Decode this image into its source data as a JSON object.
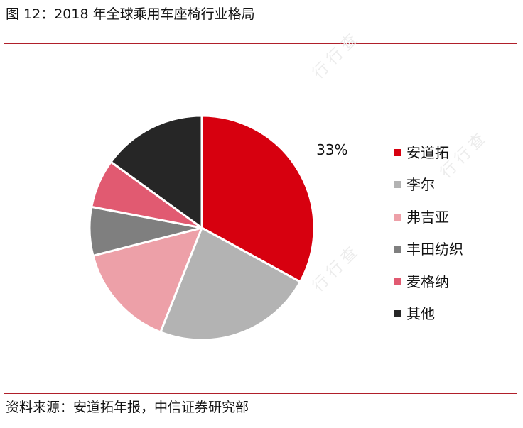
{
  "header": {
    "title": "图 12：2018 年全球乘用车座椅行业格局"
  },
  "footer": {
    "source": "资料来源：安道拓年报，中信证券研究部"
  },
  "watermark": {
    "text": "行行查"
  },
  "chart_data": {
    "type": "pie",
    "title": "",
    "slices": [
      {
        "label": "安道拓",
        "value": 33,
        "color": "#d7000f",
        "data_label": "33%"
      },
      {
        "label": "李尔",
        "value": 23,
        "color": "#b3b3b3",
        "data_label": ""
      },
      {
        "label": "弗吉亚",
        "value": 15,
        "color": "#eda0a8",
        "data_label": ""
      },
      {
        "label": "丰田纺织",
        "value": 7,
        "color": "#7f7f7f",
        "data_label": ""
      },
      {
        "label": "麦格纳",
        "value": 7,
        "color": "#e15a71",
        "data_label": ""
      },
      {
        "label": "其他",
        "value": 15,
        "color": "#262626",
        "data_label": ""
      }
    ],
    "start_angle_deg": 0,
    "direction": "clockwise",
    "legend_position": "right"
  }
}
